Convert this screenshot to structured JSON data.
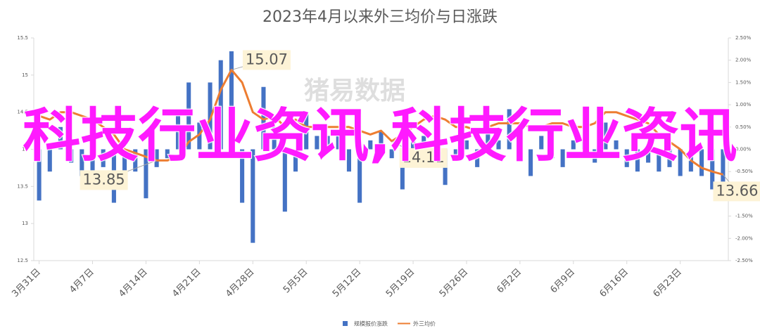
{
  "chart_data": {
    "type": "bar-line",
    "title": "2023年4月以来外三均价与日涨跌",
    "watermark": "猪易数据",
    "overlay_text": "科技行业资讯,科技行业资讯",
    "categories": [
      "3月31日",
      null,
      null,
      null,
      null,
      "4月7日",
      null,
      null,
      null,
      null,
      "4月14日",
      null,
      null,
      null,
      null,
      "4月21日",
      null,
      null,
      null,
      null,
      "4月28日",
      null,
      null,
      null,
      null,
      "5月5日",
      null,
      null,
      null,
      null,
      "5月12日",
      null,
      null,
      null,
      null,
      "5月19日",
      null,
      null,
      null,
      null,
      "5月26日",
      null,
      null,
      null,
      null,
      "6月2日",
      null,
      null,
      null,
      null,
      "6月9日",
      null,
      null,
      null,
      null,
      "6月16日",
      null,
      null,
      null,
      null,
      "6月23日",
      null,
      null,
      null,
      null
    ],
    "ylim": [
      12.5,
      15.5
    ],
    "yticks": [
      12.5,
      13,
      13.5,
      14,
      14.5,
      15,
      15.5
    ],
    "y2lim": [
      -2.5,
      2.5
    ],
    "y2ticks": [
      {
        "value": -2.5,
        "label": "-2.50%"
      },
      {
        "value": -2,
        "label": "-2.00%"
      },
      {
        "value": -1.5,
        "label": "-1.50%"
      },
      {
        "value": -1,
        "label": "-1.00%"
      },
      {
        "value": -0.5,
        "label": "-0.50%"
      },
      {
        "value": 0,
        "label": "0.00%"
      },
      {
        "value": 0.5,
        "label": "0.50%"
      },
      {
        "value": 1,
        "label": "1.00%"
      },
      {
        "value": 1.5,
        "label": "1.50%"
      },
      {
        "value": 2,
        "label": "2.00%"
      },
      {
        "value": 2.5,
        "label": "2.50%"
      }
    ],
    "series": [
      {
        "name": "规模报价涨跌",
        "type": "bar",
        "axis": "y2",
        "color": "#4472c4",
        "values": [
          -1.15,
          -0.5,
          0.5,
          -0.3,
          -0.6,
          -0.8,
          -0.4,
          -1.2,
          -0.6,
          -0.5,
          -1.1,
          -0.4,
          -0.2,
          0.9,
          1.5,
          0.6,
          1.5,
          2.0,
          2.2,
          -1.2,
          -2.1,
          1.4,
          0.5,
          -1.4,
          -0.5,
          0.8,
          0.3,
          0.3,
          0.3,
          -0.5,
          -1.2,
          0.2,
          0.4,
          -0.2,
          -0.9,
          0.3,
          0.3,
          -0.2,
          -0.8,
          -0.2,
          0.2,
          -0.4,
          0.5,
          0.2,
          0.9,
          0.3,
          -0.6,
          0.3,
          -0.2,
          -0.4,
          0.2,
          0.2,
          -0.3,
          0.6,
          0.2,
          -0.4,
          -0.5,
          -0.3,
          -0.5,
          -0.4,
          -0.6,
          -0.5,
          -0.6,
          -0.9,
          -0.8
        ]
      },
      {
        "name": "外三均价",
        "type": "line",
        "color": "#ed7d31",
        "values": [
          14.45,
          14.4,
          14.5,
          14.5,
          14.45,
          14.4,
          14.3,
          14.2,
          14.0,
          13.95,
          13.9,
          13.85,
          13.85,
          13.9,
          14.1,
          14.2,
          14.4,
          14.8,
          15.07,
          14.9,
          14.5,
          14.4,
          14.45,
          14.3,
          14.4,
          14.3,
          14.3,
          14.3,
          14.3,
          14.3,
          14.25,
          14.2,
          14.25,
          14.11,
          14.2,
          14.3,
          14.4,
          14.45,
          14.4,
          14.3,
          14.3,
          14.25,
          14.3,
          14.35,
          14.35,
          14.35,
          14.3,
          14.3,
          14.35,
          14.35,
          14.3,
          14.3,
          14.35,
          14.5,
          14.5,
          14.45,
          14.4,
          14.35,
          14.2,
          14.1,
          14.0,
          13.85,
          13.75,
          13.7,
          13.66
        ],
        "value_labels": [
          null,
          null,
          null,
          null,
          null,
          null,
          null,
          null,
          null,
          null,
          null,
          "13.85",
          null,
          null,
          null,
          null,
          null,
          null,
          "15.07",
          null,
          null,
          null,
          null,
          null,
          null,
          null,
          null,
          null,
          null,
          null,
          null,
          null,
          null,
          "14.11",
          null,
          null,
          null,
          null,
          null,
          null,
          null,
          null,
          null,
          null,
          null,
          null,
          null,
          null,
          null,
          null,
          null,
          null,
          null,
          null,
          null,
          null,
          null,
          null,
          null,
          null,
          null,
          null,
          null,
          null,
          "13.66"
        ]
      }
    ]
  }
}
